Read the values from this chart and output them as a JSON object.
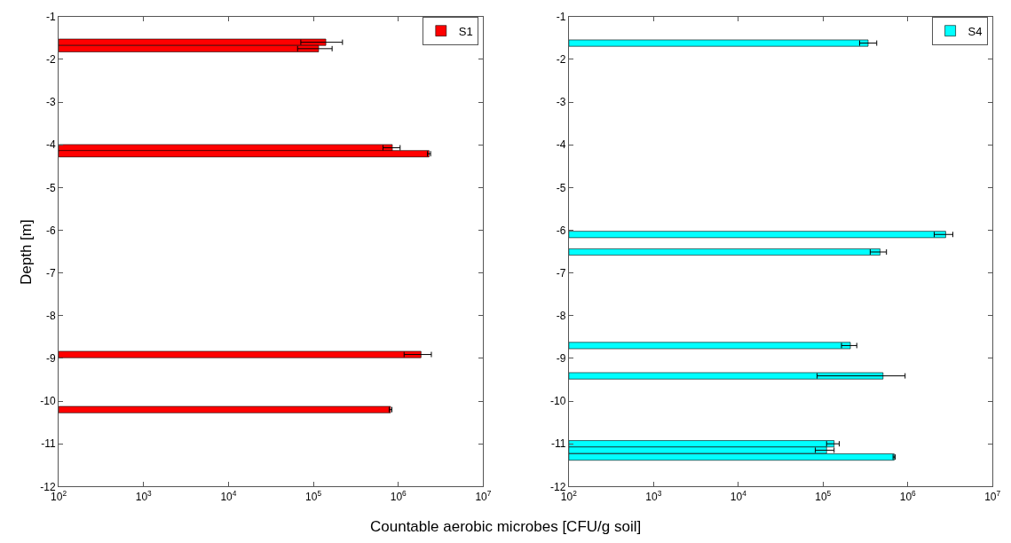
{
  "chart_data": [
    {
      "type": "bar",
      "orientation": "horizontal",
      "log": "x",
      "legend": "top right",
      "ylabel": "Depth [m]",
      "xlabel": "Countable aerobic microbes [CFU/g soil]",
      "xlim": [
        100,
        10000000
      ],
      "xticks": [
        {
          "value": 100,
          "label": "10$^{2}$"
        },
        {
          "value": 1000,
          "label": "10$^{3}$"
        },
        {
          "value": 10000,
          "label": "10$^{4}$"
        },
        {
          "value": 100000,
          "label": "10$^{5}$"
        },
        {
          "value": 1000000,
          "label": "10$^{6}$"
        },
        {
          "value": 10000000,
          "label": "10$^{7}$"
        }
      ],
      "ylim": [
        -12,
        -1
      ],
      "yticks": [
        -12,
        -11,
        -10,
        -9,
        -8,
        -7,
        -6,
        -5,
        -4,
        -3,
        -2,
        -1
      ],
      "series": [
        {
          "name": "S1",
          "color": "#ff0000",
          "x": [
            -1.6,
            -1.75,
            -4.07,
            -4.21,
            -8.91,
            -10.2
          ],
          "values": [
            140000,
            115000,
            850000,
            2300000,
            1850000,
            810000
          ],
          "errors": [
            [
              71000,
              220000
            ],
            [
              65000,
              166000
            ],
            [
              660000,
              1050000
            ],
            [
              2200000,
              2400000
            ],
            [
              1170000,
              2450000
            ],
            [
              780000,
              840000
            ]
          ]
        }
      ]
    },
    {
      "type": "bar",
      "orientation": "horizontal",
      "log": "x",
      "legend": "top right",
      "xlim": [
        100,
        10000000
      ],
      "xticks": [
        {
          "value": 100,
          "label": "10$^{2}$"
        },
        {
          "value": 1000,
          "label": "10$^{3}$"
        },
        {
          "value": 10000,
          "label": "10$^{4}$"
        },
        {
          "value": 100000,
          "label": "10$^{5}$"
        },
        {
          "value": 1000000,
          "label": "10$^{6}$"
        },
        {
          "value": 10000000,
          "label": "10$^{7}$"
        }
      ],
      "ylim": [
        -12,
        -1
      ],
      "yticks": [
        -12,
        -11,
        -10,
        -9,
        -8,
        -7,
        -6,
        -5,
        -4,
        -3,
        -2,
        -1
      ],
      "series": [
        {
          "name": "S4",
          "color": "#00ffff",
          "x": [
            -1.62,
            -6.1,
            -6.51,
            -8.7,
            -9.41,
            -11.0,
            -11.15,
            -11.31
          ],
          "values": [
            340000,
            2800000,
            470000,
            210000,
            510000,
            135000,
            110000,
            690000
          ],
          "errors": [
            [
              270000,
              430000
            ],
            [
              2050000,
              3400000
            ],
            [
              360000,
              560000
            ],
            [
              165000,
              250000
            ],
            [
              85000,
              930000
            ],
            [
              110000,
              155000
            ],
            [
              81000,
              135000
            ],
            [
              670000,
              710000
            ]
          ]
        }
      ]
    }
  ]
}
